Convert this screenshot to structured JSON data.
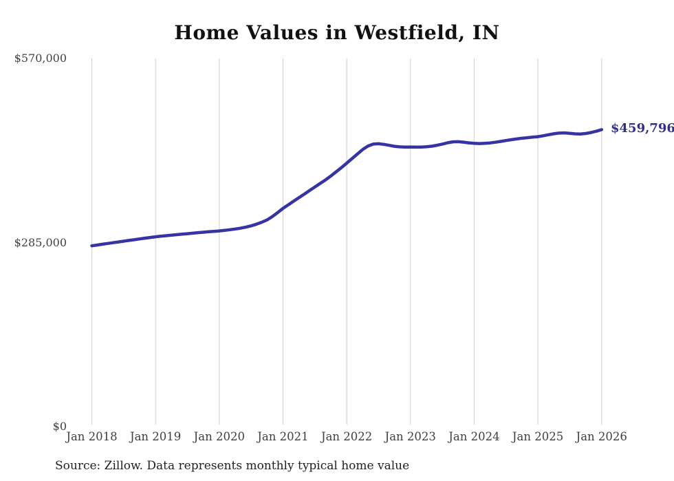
{
  "title": "Home Values in Westfield, IN",
  "source_note": "Source: Zillow. Data represents monthly typical home value",
  "end_label": "$459,796",
  "colors": {
    "line": "#3633a4",
    "end_label_text": "#312e8e",
    "gridline": "#cdcdcd",
    "tick_text": "#3f3f3f",
    "title_text": "#111111",
    "source_text": "#1f1f1f",
    "background": "#ffffff"
  },
  "chart_data": {
    "type": "line",
    "title": "Home Values in Westfield, IN",
    "interval": "monthly",
    "x_start": "Jan 2018",
    "x_end": "Jan 2026",
    "x_tick_labels": [
      "Jan 2018",
      "Jan 2019",
      "Jan 2020",
      "Jan 2021",
      "Jan 2022",
      "Jan 2023",
      "Jan 2024",
      "Jan 2025",
      "Jan 2026"
    ],
    "y_ticks": [
      {
        "value": 0,
        "label": "$0"
      },
      {
        "value": 285000,
        "label": "$285,000"
      },
      {
        "value": 570000,
        "label": "$570,000"
      }
    ],
    "ylim": [
      0,
      570000
    ],
    "grid": "vertical-only",
    "legend": "none",
    "end_annotation": "$459,796",
    "latest_value": 459796,
    "values": [
      280000,
      281200,
      282400,
      283600,
      284800,
      286000,
      287100,
      288300,
      289400,
      290600,
      291800,
      292900,
      294000,
      294900,
      295700,
      296500,
      297300,
      298000,
      298700,
      299500,
      300300,
      301000,
      301700,
      302400,
      303000,
      303900,
      304900,
      306000,
      307300,
      308900,
      310900,
      313400,
      316400,
      320000,
      325300,
      331500,
      338000,
      343500,
      349000,
      354500,
      360000,
      365500,
      371000,
      376500,
      382000,
      388000,
      394500,
      401000,
      408000,
      415000,
      422000,
      429000,
      434500,
      437500,
      438000,
      437000,
      435500,
      434000,
      433200,
      432900,
      433000,
      432800,
      432900,
      433300,
      434200,
      435700,
      437500,
      439500,
      441000,
      441200,
      440400,
      439400,
      438600,
      438300,
      438600,
      439300,
      440300,
      441600,
      443000,
      444300,
      445500,
      446500,
      447400,
      448200,
      449000,
      450300,
      451900,
      453400,
      454500,
      454800,
      454200,
      453300,
      453100,
      453900,
      455400,
      457400,
      459796
    ]
  }
}
